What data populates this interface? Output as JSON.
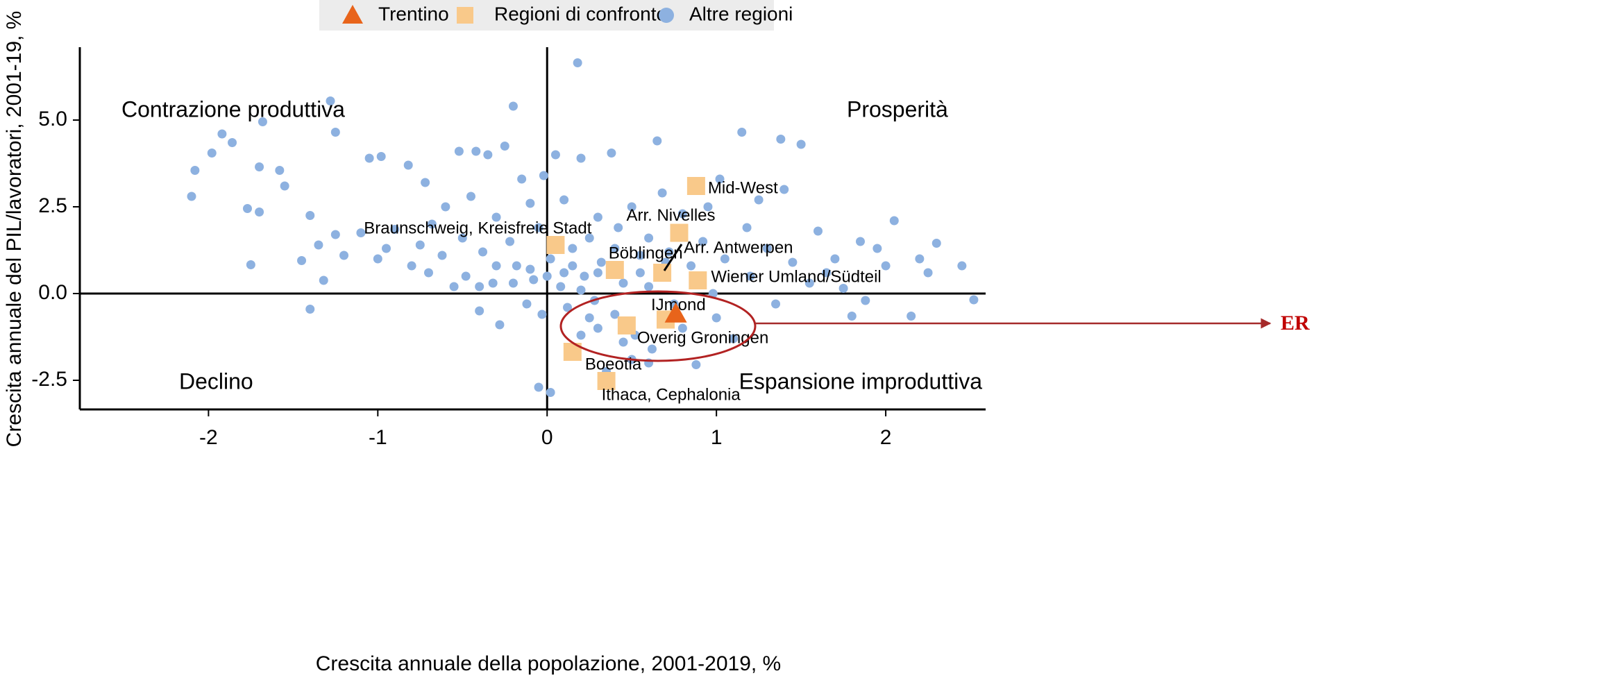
{
  "chart_data": {
    "type": "scatter",
    "x_label": "Crescita annuale della popolazione, 2001-2019, %",
    "y_label": "Crescita annuale del PIL/lavoratori, 2001-19, %",
    "xlim": [
      -2.76,
      2.59
    ],
    "ylim": [
      -3.34,
      7.1
    ],
    "xticks": [
      -2,
      -1,
      0,
      1,
      2
    ],
    "yticks": [
      -2.5,
      {
        "value": 0,
        "label": "0.0"
      },
      2.5,
      {
        "value": 5,
        "label": "5.0"
      }
    ],
    "annotations": [
      "Contrazione produttiva",
      "Prosperità",
      "Declino",
      "Espansione improduttiva",
      "ER"
    ],
    "series": [
      {
        "name": "Trentino",
        "color": "#e8641b",
        "marker": "triangle",
        "x": [
          0.76
        ],
        "values": [
          -0.58
        ]
      },
      {
        "name": "Regioni di confronto",
        "color": "#f9c98a",
        "marker": "square",
        "labels": [
          "Mid-West",
          "Arr. Nivelles",
          "Braunschweig, Kreisfreie Stadt",
          "Böblingen",
          "Arr. Antwerpen",
          "Wiener Umland/Südteil",
          "IJmond",
          "Overig Groningen",
          "Boeotia",
          "Ithaca, Cephalonia"
        ],
        "x": [
          0.88,
          0.78,
          0.05,
          0.4,
          0.68,
          0.89,
          0.7,
          0.47,
          0.15,
          0.35
        ],
        "values": [
          3.1,
          1.75,
          1.4,
          0.68,
          0.6,
          0.38,
          -0.75,
          -0.92,
          -1.68,
          -2.52
        ]
      },
      {
        "name": "Altre regioni",
        "color": "#8db1e0",
        "marker": "circle",
        "x": [
          -2.1,
          -2.08,
          -1.98,
          -1.92,
          -1.86,
          -1.77,
          -1.75,
          -1.7,
          -1.7,
          -1.68,
          -1.58,
          -1.55,
          -1.45,
          -1.4,
          -1.4,
          -1.35,
          -1.32,
          -1.28,
          -1.25,
          -1.25,
          -1.2,
          -1.1,
          -1.05,
          -1.0,
          -0.98,
          -0.95,
          -0.9,
          -0.82,
          -0.8,
          -0.75,
          -0.72,
          -0.7,
          -0.68,
          -0.62,
          -0.6,
          -0.55,
          -0.52,
          -0.5,
          -0.48,
          -0.45,
          -0.42,
          -0.4,
          -0.38,
          -0.35,
          -0.32,
          -0.3,
          -0.28,
          -0.25,
          -0.22,
          -0.2,
          -0.18,
          -0.15,
          -0.12,
          -0.1,
          -0.08,
          -0.05,
          -0.03,
          -0.02,
          0.02,
          0.05,
          0.08,
          0.1,
          0.12,
          0.15,
          0.18,
          0.2,
          0.22,
          0.25,
          0.28,
          0.3,
          0.32,
          0.38,
          0.4,
          0.42,
          0.45,
          0.5,
          0.52,
          0.55,
          0.6,
          0.62,
          0.65,
          0.68,
          0.72,
          0.75,
          0.8,
          0.85,
          0.88,
          0.92,
          0.95,
          0.98,
          1.02,
          1.05,
          1.1,
          1.15,
          1.18,
          1.2,
          1.25,
          1.3,
          1.35,
          1.38,
          1.4,
          1.45,
          1.5,
          1.55,
          1.6,
          1.65,
          1.7,
          1.75,
          1.8,
          1.85,
          1.88,
          1.95,
          2.0,
          2.05,
          2.15,
          2.2,
          2.25,
          2.3,
          2.45,
          2.52,
          0.35,
          -0.05,
          0.02,
          0.5,
          0.6,
          0.3,
          0.1,
          0,
          -0.1,
          0.2,
          0.3,
          0.4,
          0.55,
          0.6,
          0.7,
          0.9,
          -0.2,
          -0.3,
          -0.4,
          0.15,
          0.25,
          0.45,
          0.8,
          1.0,
          0.2
        ],
        "values": [
          2.8,
          3.55,
          4.05,
          4.6,
          4.35,
          2.45,
          0.83,
          3.65,
          2.35,
          4.95,
          3.55,
          3.1,
          0.95,
          -0.45,
          2.25,
          1.4,
          0.38,
          5.55,
          4.65,
          1.7,
          1.1,
          1.75,
          3.9,
          1.0,
          3.95,
          1.3,
          1.85,
          3.7,
          0.8,
          1.4,
          3.2,
          0.6,
          2.0,
          1.1,
          2.5,
          0.2,
          4.1,
          1.6,
          0.5,
          2.8,
          4.1,
          -0.5,
          1.2,
          4.0,
          0.3,
          2.2,
          -0.9,
          4.25,
          1.5,
          5.4,
          0.8,
          3.3,
          -0.3,
          2.6,
          0.4,
          1.9,
          -0.6,
          3.4,
          1.0,
          4.0,
          0.2,
          2.7,
          -0.4,
          0.8,
          6.65,
          3.9,
          0.5,
          1.6,
          -0.2,
          2.2,
          0.9,
          4.05,
          -0.6,
          1.9,
          0.3,
          2.5,
          -1.2,
          1.1,
          0.2,
          -1.6,
          4.4,
          2.9,
          1.2,
          -0.3,
          2.3,
          0.8,
          -2.05,
          1.5,
          2.5,
          0,
          3.3,
          1.0,
          -1.3,
          4.65,
          1.9,
          0.5,
          2.7,
          1.3,
          -0.3,
          4.45,
          3.0,
          0.9,
          4.3,
          0.3,
          1.8,
          0.6,
          1.0,
          0.15,
          -0.65,
          1.5,
          -0.2,
          1.3,
          0.8,
          2.1,
          -0.65,
          1.0,
          0.6,
          1.45,
          0.8,
          -0.18,
          -2.25,
          -2.7,
          -2.85,
          -1.9,
          -2.0,
          -1.0,
          0.6,
          0.5,
          0.7,
          0.1,
          0.6,
          1.3,
          0.6,
          1.6,
          0.9,
          0.4,
          0.3,
          0.8,
          0.2,
          1.3,
          -0.7,
          -1.4,
          -1.0,
          -0.7,
          -1.2
        ]
      }
    ]
  }
}
